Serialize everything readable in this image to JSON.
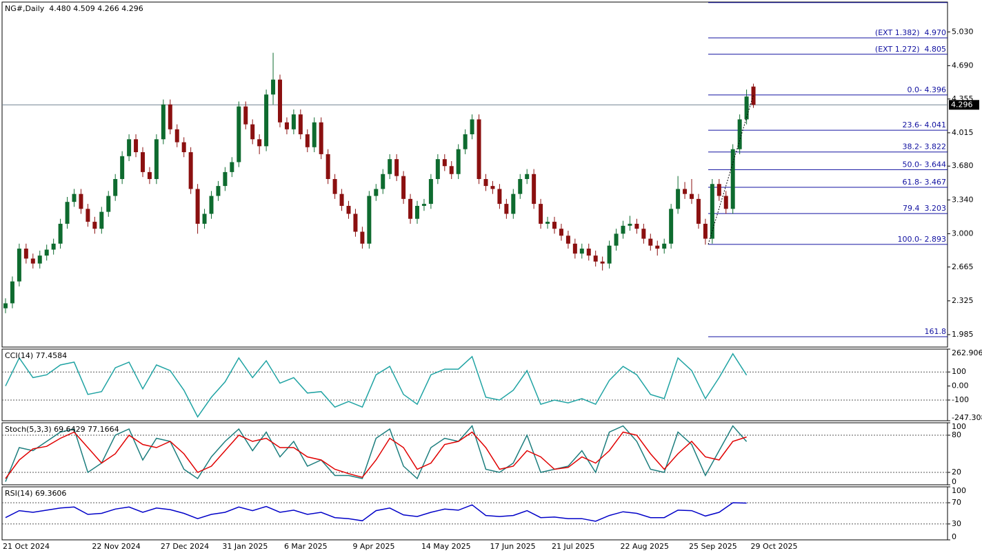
{
  "chart_data": [
    {
      "type": "candlestick",
      "title": "NG#,Daily  4.480 4.509 4.266 4.296",
      "categories": [
        "21 Oct 2024",
        null,
        null,
        null,
        null,
        null,
        null,
        null,
        null,
        null,
        null,
        null,
        null,
        "22 Nov 2024",
        null,
        null,
        null,
        null,
        null,
        null,
        null,
        null,
        null,
        "27 Dec 2024",
        null,
        null,
        null,
        null,
        null,
        null,
        null,
        null,
        "31 Jan 2025",
        null,
        null,
        null,
        null,
        null,
        null,
        null,
        null,
        "6 Mar 2025",
        null,
        null,
        null,
        null,
        null,
        null,
        null,
        null,
        null,
        "9 Apr 2025",
        null,
        null,
        null,
        null,
        null,
        null,
        null,
        null,
        null,
        "14 May 2025",
        null,
        null,
        null,
        null,
        null,
        null,
        null,
        null,
        null,
        "17 Jun 2025",
        null,
        null,
        null,
        null,
        null,
        null,
        null,
        null,
        "21 Jul 2025",
        null,
        null,
        null,
        null,
        null,
        null,
        null,
        null,
        null,
        "22 Aug 2025",
        null,
        null,
        null,
        null,
        null,
        null,
        null,
        null,
        null,
        "25 Sep 2025",
        null,
        null,
        null,
        null,
        null,
        null,
        null,
        null,
        "29 Oct 2025"
      ],
      "open": [
        2.25,
        2.3,
        2.52,
        2.85,
        2.75,
        2.7,
        2.78,
        2.84,
        2.9,
        3.1,
        3.32,
        3.4,
        3.25,
        3.12,
        3.05,
        3.22,
        3.38,
        3.55,
        3.78,
        3.95,
        3.82,
        3.62,
        3.55,
        3.95,
        4.3,
        4.05,
        3.92,
        3.82,
        3.45,
        3.1,
        3.2,
        3.38,
        3.48,
        3.62,
        3.72,
        4.28,
        4.1,
        3.95,
        3.88,
        4.4,
        4.55,
        4.12,
        4.05,
        4.2,
        4.0,
        3.87,
        4.12,
        3.8,
        3.55,
        3.4,
        3.28,
        3.2,
        3.02,
        2.9,
        3.38,
        3.45,
        3.6,
        3.75,
        3.58,
        3.35,
        3.15,
        3.28,
        3.3,
        3.55,
        3.75,
        3.68,
        3.6,
        3.85,
        4.0,
        4.15,
        3.55,
        3.48,
        3.45,
        3.3,
        3.2,
        3.4,
        3.55,
        3.6,
        3.3,
        3.1,
        3.12,
        3.05,
        2.98,
        2.9,
        2.8,
        2.85,
        2.78,
        2.72,
        2.7,
        2.88,
        3.0,
        3.08,
        3.1,
        3.05,
        2.95,
        2.88,
        2.85,
        2.9,
        3.25,
        3.45,
        3.4,
        3.35,
        3.1,
        2.95,
        3.5,
        3.38,
        3.25,
        3.85,
        4.15,
        4.48
      ],
      "high": [
        2.35,
        2.57,
        2.9,
        2.9,
        2.8,
        2.83,
        2.89,
        2.95,
        3.15,
        3.37,
        3.45,
        3.45,
        3.3,
        3.17,
        3.27,
        3.43,
        3.6,
        3.83,
        4.0,
        4.0,
        3.87,
        3.67,
        4.0,
        4.35,
        4.35,
        4.1,
        3.97,
        3.87,
        3.5,
        3.25,
        3.43,
        3.53,
        3.67,
        3.77,
        4.33,
        4.33,
        4.15,
        4.0,
        4.45,
        4.82,
        4.6,
        4.17,
        4.25,
        4.25,
        4.05,
        4.17,
        4.17,
        3.85,
        3.6,
        3.45,
        3.33,
        3.25,
        3.07,
        3.43,
        3.5,
        3.65,
        3.8,
        3.8,
        3.63,
        3.4,
        3.33,
        3.35,
        3.6,
        3.8,
        3.8,
        3.73,
        3.9,
        4.05,
        4.2,
        4.2,
        3.6,
        3.53,
        3.5,
        3.35,
        3.45,
        3.6,
        3.65,
        3.65,
        3.35,
        3.17,
        3.17,
        3.1,
        3.03,
        2.95,
        2.9,
        2.9,
        2.83,
        2.77,
        2.93,
        3.05,
        3.13,
        3.18,
        3.15,
        3.1,
        3.0,
        2.93,
        2.95,
        3.3,
        3.58,
        3.52,
        3.55,
        3.4,
        3.15,
        3.55,
        3.55,
        3.43,
        3.9,
        4.2,
        4.45,
        4.509
      ],
      "low": [
        2.2,
        2.25,
        2.47,
        2.7,
        2.65,
        2.65,
        2.73,
        2.79,
        2.85,
        3.05,
        3.27,
        3.2,
        3.07,
        3.0,
        3.0,
        3.17,
        3.33,
        3.5,
        3.73,
        3.77,
        3.57,
        3.5,
        3.5,
        3.9,
        4.0,
        3.87,
        3.77,
        3.4,
        3.0,
        3.05,
        3.15,
        3.33,
        3.43,
        3.57,
        3.67,
        4.05,
        3.9,
        3.8,
        3.83,
        4.3,
        4.07,
        4.0,
        4.0,
        3.95,
        3.82,
        3.82,
        3.75,
        3.5,
        3.35,
        3.23,
        3.15,
        2.97,
        2.85,
        2.85,
        3.33,
        3.4,
        3.55,
        3.53,
        3.3,
        3.1,
        3.1,
        3.23,
        3.25,
        3.5,
        3.63,
        3.55,
        3.55,
        3.8,
        3.95,
        3.5,
        3.43,
        3.4,
        3.25,
        3.15,
        3.15,
        3.35,
        3.5,
        3.25,
        3.05,
        3.05,
        3.0,
        2.93,
        2.85,
        2.75,
        2.75,
        2.73,
        2.67,
        2.63,
        2.65,
        2.83,
        2.95,
        3.03,
        3.0,
        2.9,
        2.83,
        2.78,
        2.8,
        2.85,
        3.2,
        3.35,
        3.3,
        3.05,
        2.89,
        2.9,
        3.33,
        3.2,
        3.2,
        3.8,
        4.1,
        4.266
      ],
      "close": [
        2.3,
        2.52,
        2.85,
        2.75,
        2.7,
        2.78,
        2.84,
        2.9,
        3.1,
        3.32,
        3.4,
        3.25,
        3.12,
        3.05,
        3.22,
        3.38,
        3.55,
        3.78,
        3.95,
        3.82,
        3.62,
        3.55,
        3.95,
        4.3,
        4.05,
        3.92,
        3.82,
        3.45,
        3.1,
        3.2,
        3.38,
        3.48,
        3.62,
        3.72,
        4.28,
        4.1,
        3.95,
        3.88,
        4.4,
        4.55,
        4.12,
        4.05,
        4.2,
        4.0,
        3.87,
        4.12,
        3.8,
        3.55,
        3.4,
        3.28,
        3.2,
        3.02,
        2.9,
        3.38,
        3.45,
        3.6,
        3.75,
        3.58,
        3.35,
        3.15,
        3.28,
        3.3,
        3.55,
        3.75,
        3.68,
        3.6,
        3.85,
        4.0,
        4.15,
        3.55,
        3.48,
        3.45,
        3.3,
        3.2,
        3.4,
        3.55,
        3.6,
        3.3,
        3.1,
        3.12,
        3.05,
        2.98,
        2.9,
        2.8,
        2.85,
        2.78,
        2.72,
        2.7,
        2.88,
        3.0,
        3.08,
        3.1,
        3.05,
        2.95,
        2.88,
        2.85,
        2.9,
        3.25,
        3.45,
        3.4,
        3.35,
        3.1,
        2.95,
        3.5,
        3.38,
        3.25,
        3.85,
        4.15,
        4.38,
        4.296
      ],
      "up_color": "#0e6b2f",
      "down_color": "#8b1010",
      "ylim": [
        1.86,
        5.33
      ],
      "yticks": [
        {
          "value": 5.03,
          "label": "5.030"
        },
        {
          "value": 4.69,
          "label": "4.690"
        },
        4.355,
        4.015,
        {
          "value": 3.68,
          "label": "3.680"
        },
        {
          "value": 3.34,
          "label": "3.340"
        },
        {
          "value": 3.0,
          "label": "3.000"
        },
        2.665,
        2.325,
        1.985
      ],
      "current_price": 4.296,
      "level_color": "#1010a0",
      "levels": [
        {
          "value": 5.325
        },
        {
          "value": 4.97,
          "label": "(EXT 1.382)  4.970"
        },
        {
          "value": 4.805,
          "label": "(EXT 1.272)  4.805"
        },
        {
          "value": 4.396,
          "label": "0.0- 4.396"
        },
        {
          "value": 4.041,
          "label": "23.6- 4.041"
        },
        {
          "value": 3.822,
          "label": "38.2- 3.822"
        },
        {
          "value": 3.644,
          "label": "50.0- 3.644"
        },
        {
          "value": 3.467,
          "label": "61.8- 3.467"
        },
        {
          "value": 3.203,
          "label": "79.4  3.203"
        },
        {
          "value": 2.893,
          "label": "100.0- 2.893"
        },
        {
          "value": 1.964,
          "label": "161.8"
        }
      ]
    },
    {
      "type": "line",
      "title": "CCI(14) 77.4584",
      "ylim": [
        -247.308,
        262.906
      ],
      "yticks": [
        262.906,
        100,
        {
          "value": 0,
          "label": "0.00"
        },
        -100,
        -247.308
      ],
      "levels": [
        100,
        -100
      ],
      "series": [
        {
          "color": "#1fa3a3",
          "values": [
            0,
            200,
            60,
            80,
            150,
            170,
            -60,
            -40,
            130,
            170,
            -20,
            150,
            110,
            -30,
            -220,
            -80,
            30,
            200,
            60,
            180,
            20,
            60,
            -50,
            -40,
            -150,
            -110,
            -150,
            80,
            140,
            -60,
            -130,
            80,
            120,
            120,
            210,
            -80,
            -100,
            -30,
            110,
            -130,
            -100,
            -120,
            -90,
            -130,
            40,
            140,
            80,
            -60,
            -90,
            200,
            110,
            -90,
            60,
            230,
            77.4584
          ]
        }
      ]
    },
    {
      "type": "line",
      "title": "Stoch(5,3,3) 69.6429 77.1664",
      "ylim": [
        0,
        100
      ],
      "yticks": [
        100,
        80,
        20,
        0
      ],
      "levels": [
        80,
        20
      ],
      "series": [
        {
          "color": "#1b7d7d",
          "values": [
            5,
            60,
            55,
            70,
            85,
            90,
            20,
            35,
            80,
            90,
            40,
            75,
            70,
            25,
            10,
            45,
            70,
            90,
            55,
            85,
            45,
            70,
            30,
            40,
            15,
            15,
            10,
            75,
            90,
            30,
            10,
            60,
            75,
            70,
            95,
            25,
            20,
            35,
            80,
            20,
            25,
            30,
            55,
            20,
            85,
            95,
            70,
            25,
            20,
            85,
            65,
            15,
            55,
            95,
            69.6429
          ]
        },
        {
          "color": "#e00000",
          "values": [
            10,
            40,
            58,
            62,
            75,
            85,
            60,
            35,
            50,
            80,
            65,
            60,
            70,
            50,
            20,
            30,
            55,
            80,
            70,
            75,
            60,
            60,
            45,
            40,
            25,
            18,
            12,
            40,
            75,
            60,
            25,
            35,
            65,
            70,
            85,
            60,
            25,
            30,
            55,
            45,
            25,
            28,
            45,
            35,
            55,
            85,
            80,
            50,
            25,
            50,
            70,
            45,
            40,
            70,
            77.1664
          ]
        }
      ]
    },
    {
      "type": "line",
      "title": "RSI(14) 69.3606",
      "ylim": [
        0,
        100
      ],
      "yticks": [
        100,
        70,
        30,
        0
      ],
      "levels": [
        70,
        30
      ],
      "series": [
        {
          "color": "#0000c8",
          "values": [
            42,
            55,
            52,
            56,
            60,
            62,
            48,
            50,
            58,
            62,
            52,
            60,
            57,
            50,
            40,
            48,
            52,
            62,
            55,
            63,
            52,
            56,
            48,
            52,
            42,
            40,
            36,
            55,
            60,
            47,
            44,
            52,
            58,
            56,
            66,
            46,
            44,
            46,
            55,
            42,
            43,
            40,
            40,
            35,
            46,
            53,
            50,
            42,
            42,
            56,
            55,
            45,
            52,
            70,
            69.3606
          ]
        }
      ]
    }
  ]
}
